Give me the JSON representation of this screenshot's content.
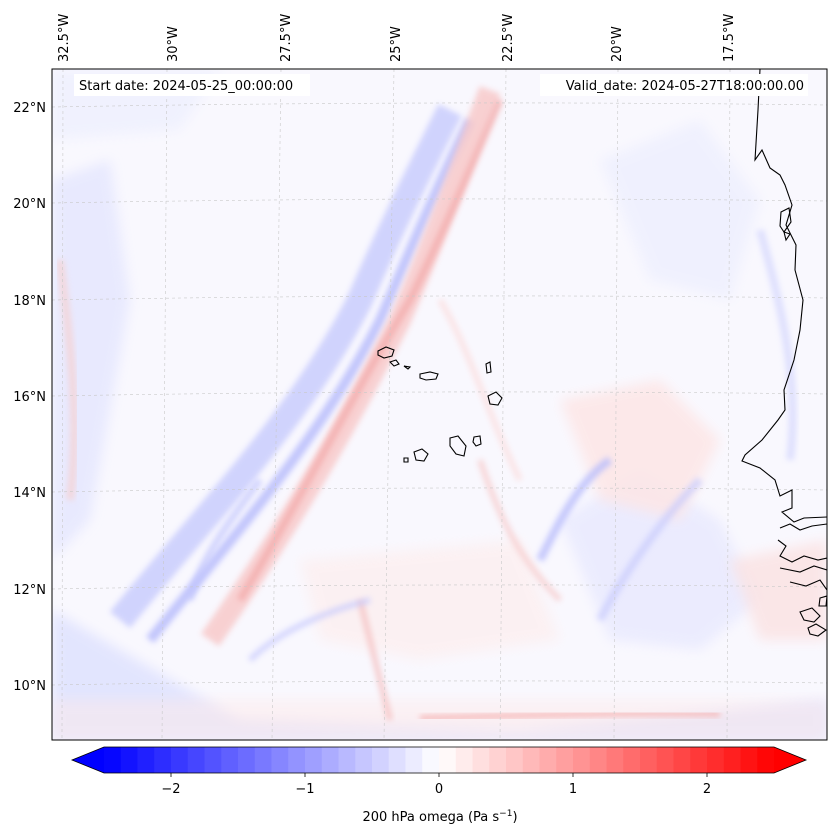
{
  "map": {
    "start_date_text": "Start date: 2024-05-25_00:00:00",
    "valid_date_text": "Valid_date: 2024-05-27T18:00:00.00",
    "lon_labels": [
      "32.5°W",
      "30°W",
      "27.5°W",
      "25°W",
      "22.5°W",
      "20°W",
      "17.5°W"
    ],
    "lat_labels": [
      "22°N",
      "20°N",
      "18°N",
      "16°N",
      "14°N",
      "12°N",
      "10°N"
    ],
    "extent": {
      "lon_min": -33.0,
      "lon_max": -15.3,
      "lat_min": 8.9,
      "lat_max": 22.8
    }
  },
  "colorbar": {
    "ticks": [
      "−2",
      "−1",
      "0",
      "1",
      "2"
    ],
    "tick_values": [
      -2,
      -1,
      0,
      1,
      2
    ],
    "range": [
      -2.5,
      2.5
    ],
    "label_main": "200 hPa omega (Pa s",
    "label_exp": "−1",
    "label_end": ")",
    "colormap": "bwr",
    "colors": {
      "min": "#0000ff",
      "mid": "#ffffff",
      "max": "#ff0000"
    }
  }
}
